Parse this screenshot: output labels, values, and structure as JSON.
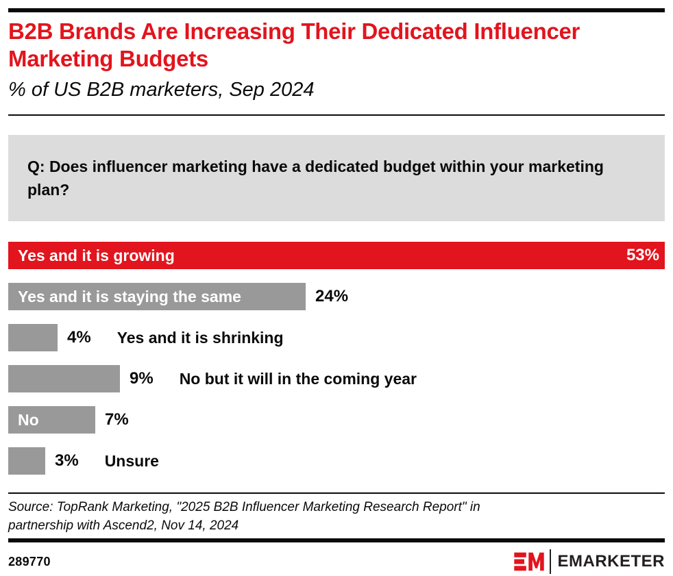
{
  "accent_color": "#e2141d",
  "bar_gray": "#999999",
  "question_bg": "#dcdcdc",
  "header": {
    "title": "B2B Brands Are Increasing Their Dedicated Influencer Marketing Budgets",
    "subtitle": "% of US B2B marketers, Sep 2024"
  },
  "question": {
    "text": "Q: Does influencer marketing have a dedicated budget within your marketing plan?"
  },
  "chart_data": {
    "type": "bar",
    "orientation": "horizontal",
    "unit": "%",
    "max_value": 53,
    "title": "B2B Brands Are Increasing Their Dedicated Influencer Marketing Budgets",
    "subtitle": "% of US B2B marketers, Sep 2024",
    "categories": [
      "Yes and it is growing",
      "Yes and it is staying the same",
      "Yes and it is shrinking",
      "No but it will in the coming year",
      "No",
      "Unsure"
    ],
    "values": [
      53,
      24,
      4,
      9,
      7,
      3
    ],
    "bars": [
      {
        "label": "Yes and it is growing",
        "value": 53,
        "value_label": "53%",
        "label_placement": "inside",
        "value_placement": "inside-right",
        "color": "#e2141d",
        "inside_text_color": "#ffffff"
      },
      {
        "label": "Yes and it is staying the same",
        "value": 24,
        "value_label": "24%",
        "label_placement": "inside",
        "value_placement": "outside",
        "color": "#999999",
        "inside_text_color": "#ffffff"
      },
      {
        "label": "Yes and it is shrinking",
        "value": 4,
        "value_label": "4%",
        "label_placement": "outside",
        "value_placement": "outside",
        "color": "#999999",
        "inside_text_color": "#ffffff"
      },
      {
        "label": "No but it will in the coming year",
        "value": 9,
        "value_label": "9%",
        "label_placement": "outside",
        "value_placement": "outside",
        "color": "#999999",
        "inside_text_color": "#ffffff"
      },
      {
        "label": "No",
        "value": 7,
        "value_label": "7%",
        "label_placement": "inside",
        "value_placement": "outside",
        "color": "#999999",
        "inside_text_color": "#ffffff"
      },
      {
        "label": "Unsure",
        "value": 3,
        "value_label": "3%",
        "label_placement": "outside",
        "value_placement": "outside",
        "color": "#999999",
        "inside_text_color": "#ffffff"
      }
    ]
  },
  "source": {
    "text": "Source: TopRank Marketing, \"2025 B2B Influencer Marketing Research Report\" in partnership with Ascend2, Nov 14, 2024"
  },
  "footer": {
    "chart_id": "289770",
    "brand": "EMARKETER"
  }
}
